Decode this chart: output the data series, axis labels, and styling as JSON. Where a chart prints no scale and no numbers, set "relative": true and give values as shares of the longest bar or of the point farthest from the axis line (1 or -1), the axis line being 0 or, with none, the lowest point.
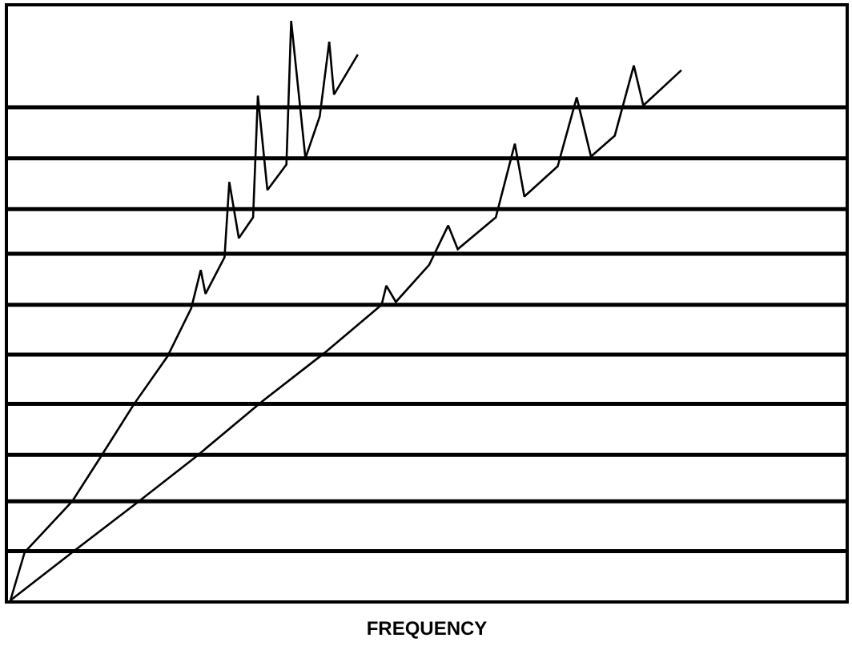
{
  "chart_data": {
    "type": "line",
    "relative": true,
    "xlabel": "FREQUENCY",
    "tick_labels": false,
    "marker": "none",
    "line_style": "solid",
    "categories": [
      null,
      null,
      null,
      null,
      null,
      null,
      null,
      null,
      null,
      null,
      null,
      null,
      null,
      null,
      null,
      null,
      null,
      null,
      null,
      null,
      null,
      null,
      null,
      null,
      null,
      null,
      null,
      null,
      null,
      null,
      null,
      null,
      null,
      null,
      null,
      null,
      null,
      null,
      null,
      null,
      null,
      null,
      null,
      null,
      null,
      null,
      null,
      null,
      null,
      null,
      null,
      null,
      null,
      null,
      null,
      null,
      null,
      null,
      null,
      null,
      null,
      null,
      null,
      null,
      null,
      null,
      null,
      null,
      null,
      null,
      null,
      null,
      null,
      null,
      null,
      null,
      null,
      null,
      null,
      null,
      null,
      null,
      null,
      null,
      null,
      null,
      null,
      null,
      null,
      null,
      null,
      null,
      null,
      null,
      null,
      null,
      null,
      null,
      null,
      null,
      null,
      null,
      null,
      null,
      null,
      null,
      null,
      null,
      null,
      null,
      null,
      null,
      null,
      null,
      null,
      null,
      null,
      null,
      null,
      null,
      null,
      null,
      null,
      null,
      null,
      null,
      null,
      null,
      null,
      null,
      null,
      null,
      null,
      null,
      null,
      null,
      null,
      null,
      null,
      null,
      null,
      null,
      null,
      null,
      null,
      null,
      null,
      null,
      null,
      null,
      null,
      null,
      null,
      null,
      null,
      null,
      null,
      null,
      null,
      null,
      null,
      null,
      null,
      null,
      null,
      null,
      null,
      null,
      null,
      null,
      null,
      null,
      null,
      null,
      null,
      null
    ],
    "series": [
      {
        "color": "#000000",
        "values": [
          0,
          null,
          null,
          0.083,
          null,
          null,
          null,
          null,
          null,
          null,
          null,
          null,
          null,
          0.171,
          null,
          null,
          null,
          null,
          null,
          0.248,
          null,
          null,
          null,
          null,
          null,
          null,
          0.339,
          null,
          null,
          null,
          null,
          null,
          null,
          0.421,
          null,
          null,
          null,
          null,
          0.504,
          null,
          0.57,
          0.529,
          null,
          null,
          null,
          0.592,
          0.722,
          null,
          0.625,
          null,
          null,
          0.661,
          0.871,
          null,
          0.708,
          null,
          null,
          null,
          0.752,
          1,
          null,
          null,
          0.763,
          null,
          null,
          0.835,
          null,
          0.964,
          0.873,
          null,
          null,
          null,
          null,
          0.942,
          null,
          null,
          null,
          null,
          null,
          null,
          null,
          null,
          null,
          null,
          null,
          null,
          null,
          null,
          null,
          null,
          null,
          null,
          null,
          null,
          null,
          null,
          null,
          null,
          null,
          null,
          null,
          null,
          null,
          null,
          null,
          null,
          null,
          null,
          null,
          null,
          null,
          null,
          null,
          null,
          null,
          null,
          null,
          null,
          null,
          null,
          null,
          null,
          null,
          null,
          null,
          null,
          null,
          null,
          null,
          null,
          null,
          null,
          null,
          null,
          null,
          null,
          null,
          null,
          null,
          null,
          null,
          null,
          null,
          null,
          null,
          null,
          null,
          null,
          null,
          null,
          null,
          null,
          null,
          null,
          null,
          null,
          null,
          null,
          null,
          null,
          null,
          null,
          null,
          null,
          null,
          null,
          null,
          null,
          null,
          null,
          null,
          null,
          null,
          null,
          null,
          null
        ]
      },
      {
        "color": "#000000",
        "values": [
          0,
          null,
          null,
          null,
          null,
          null,
          null,
          null,
          null,
          null,
          null,
          null,
          null,
          0.083,
          null,
          null,
          null,
          null,
          null,
          null,
          null,
          null,
          null,
          null,
          null,
          null,
          null,
          0.171,
          null,
          null,
          null,
          null,
          null,
          null,
          null,
          null,
          null,
          null,
          null,
          0.248,
          null,
          null,
          null,
          null,
          null,
          null,
          null,
          null,
          null,
          null,
          null,
          null,
          null,
          0.344,
          null,
          null,
          null,
          null,
          null,
          null,
          null,
          null,
          null,
          null,
          null,
          null,
          0.427,
          null,
          null,
          null,
          null,
          null,
          null,
          null,
          null,
          null,
          null,
          null,
          0.51,
          0.543,
          null,
          0.515,
          null,
          null,
          null,
          null,
          null,
          null,
          0.579,
          null,
          null,
          null,
          0.647,
          null,
          0.606,
          null,
          null,
          null,
          null,
          null,
          null,
          null,
          0.661,
          null,
          null,
          null,
          0.788,
          null,
          0.697,
          null,
          null,
          null,
          null,
          null,
          null,
          0.749,
          null,
          null,
          null,
          0.868,
          null,
          null,
          0.766,
          null,
          null,
          null,
          null,
          0.802,
          null,
          null,
          null,
          0.923,
          null,
          0.854,
          null,
          null,
          null,
          null,
          null,
          null,
          null,
          0.915,
          null,
          null,
          null,
          null,
          null,
          null,
          null,
          null,
          null,
          null,
          null,
          null,
          null,
          null,
          null,
          null,
          null,
          null,
          null,
          null,
          null,
          null,
          null,
          null,
          null,
          null,
          null,
          null,
          null,
          null,
          null,
          null,
          null,
          null
        ]
      }
    ],
    "ref_lines": [
      {
        "axis": "y",
        "value": 0.851,
        "color": "#000000"
      },
      {
        "axis": "y",
        "value": 0.763,
        "color": "#000000"
      },
      {
        "axis": "y",
        "value": 0.675,
        "color": "#000000"
      },
      {
        "axis": "y",
        "value": 0.598,
        "color": "#000000"
      },
      {
        "axis": "y",
        "value": 0.51,
        "color": "#000000"
      },
      {
        "axis": "y",
        "value": 0.424,
        "color": "#000000"
      },
      {
        "axis": "y",
        "value": 0.339,
        "color": "#000000"
      },
      {
        "axis": "y",
        "value": 0.251,
        "color": "#000000"
      },
      {
        "axis": "y",
        "value": 0.171,
        "color": "#000000"
      },
      {
        "axis": "y",
        "value": 0.085,
        "color": "#000000"
      }
    ]
  }
}
